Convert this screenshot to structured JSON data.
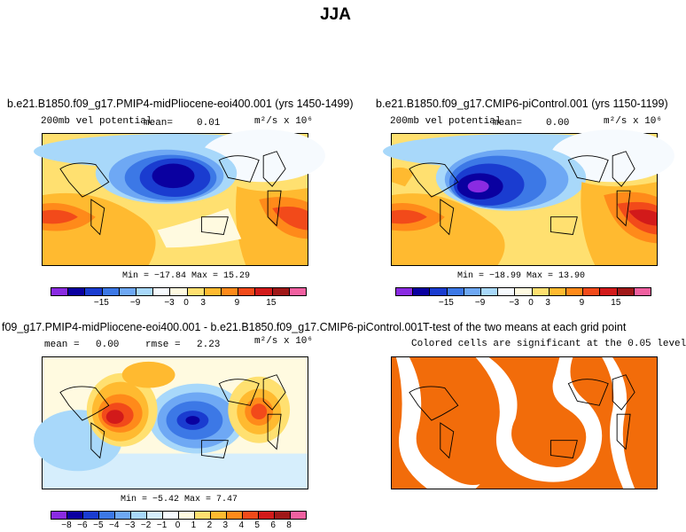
{
  "title": "JJA",
  "panels": [
    {
      "title": "b.e21.B1850.f09_g17.PMIP4-midPliocene-eoi400.001 (yrs 1450-1499)",
      "variable": "200mb vel potential",
      "mean_label": "mean=",
      "mean_value": "0.01",
      "units": "m²/s x 10⁶",
      "stats": "Min = −17.84  Max =  15.29"
    },
    {
      "title": "b.e21.B1850.f09_g17.CMIP6-piControl.001 (yrs 1150-1199)",
      "variable": "200mb vel potential",
      "mean_label": "mean=",
      "mean_value": "0.00",
      "units": "m²/s x 10⁶",
      "stats": "Min = −18.99  Max =  13.90"
    },
    {
      "title": "f09_g17.PMIP4-midPliocene-eoi400.001 - b.e21.B1850.f09_g17.CMIP6-piControl.001",
      "mean_label": "mean =",
      "mean_value": "0.00",
      "rmse_label": "rmse =",
      "rmse_value": "2.23",
      "units": "m²/s x 10⁶",
      "stats": "Min =  −5.42  Max =  7.47"
    },
    {
      "title": "T-test of the two means at each grid point",
      "subtitle": "Colored cells are significant at the 0.05 level"
    }
  ],
  "colorbar_top": {
    "colors": [
      "#8a2be2",
      "#0a00a0",
      "#1a3cd0",
      "#3c78e6",
      "#6ea8f4",
      "#a8d8fa",
      "#f6fafe",
      "#fffae0",
      "#ffe070",
      "#ffba30",
      "#ff8a1a",
      "#f24a1a",
      "#d21a1a",
      "#a01818",
      "#f060a0"
    ],
    "labels": [
      "−15",
      "−9",
      "−3",
      "0",
      "3",
      "9",
      "15"
    ]
  },
  "colorbar_diff": {
    "colors": [
      "#8a2be2",
      "#0a00a0",
      "#1a3cd0",
      "#3c78e6",
      "#6ea8f4",
      "#a8d8fa",
      "#d6eefc",
      "#f6fafe",
      "#fffae0",
      "#ffe070",
      "#ffba30",
      "#ff8a1a",
      "#f24a1a",
      "#d21a1a",
      "#a01818",
      "#f060a0"
    ],
    "labels": [
      "−8",
      "−6",
      "−5",
      "−4",
      "−3",
      "−2",
      "−1",
      "0",
      "1",
      "2",
      "3",
      "4",
      "5",
      "6",
      "8"
    ]
  },
  "ttest_color": "#f26c0a"
}
